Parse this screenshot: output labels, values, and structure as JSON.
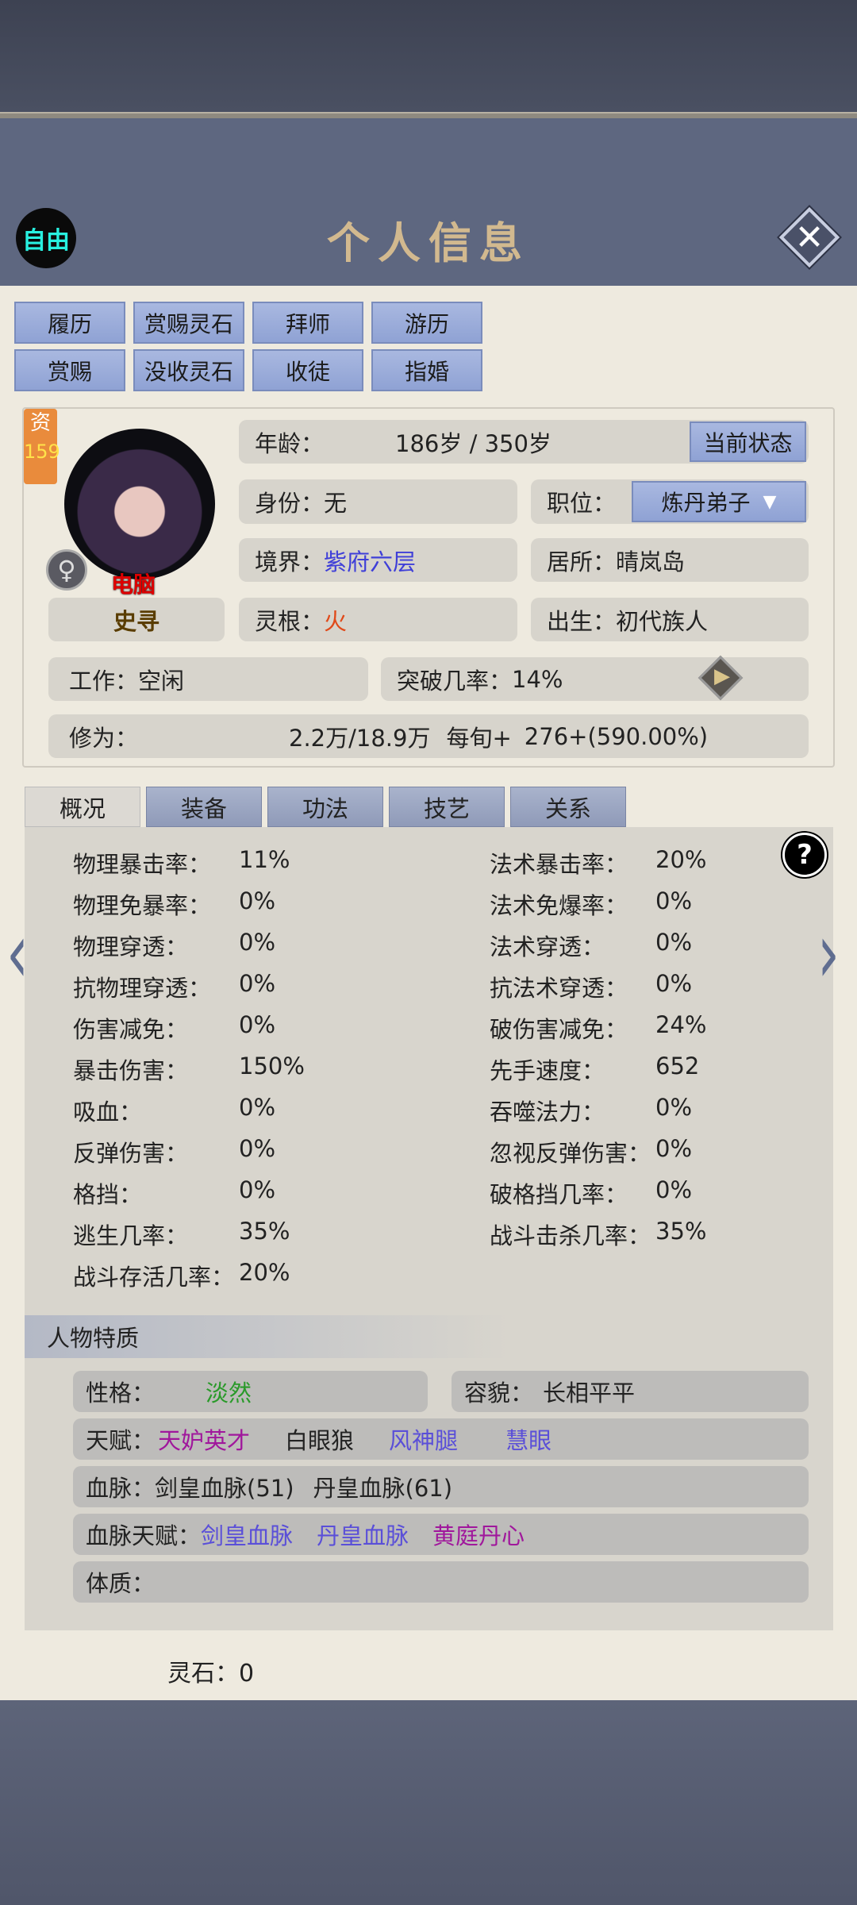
{
  "header": {
    "mode_badge": "自由",
    "title": "个人信息",
    "close_icon": "close-icon"
  },
  "actions": [
    "履历",
    "赏赐灵石",
    "拜师",
    "游历",
    "赏赐",
    "没收灵石",
    "收徒",
    "指婚"
  ],
  "profile": {
    "aptitude_label": "资",
    "aptitude_value": "159",
    "controller": "电脑",
    "gender": "♀",
    "name": "史寻",
    "age_label": "年龄：",
    "age_value": "186岁 / 350岁",
    "status_button": "当前状态",
    "identity_label": "身份：",
    "identity_value": "无",
    "position_label": "职位：",
    "position_value": "炼丹弟子",
    "realm_label": "境界：",
    "realm_value": "紫府六层",
    "residence_label": "居所：",
    "residence_value": "晴岚岛",
    "root_label": "灵根：",
    "root_value": "火",
    "birth_label": "出生：",
    "birth_value": "初代族人",
    "work_label": "工作：",
    "work_value": "空闲",
    "breakthrough_label": "突破几率：",
    "breakthrough_value": "14%",
    "cultivation_label": "修为：",
    "cultivation_value": "2.2万/18.9万",
    "per_turn_label": "每旬+",
    "per_turn_value": "276+(590.00%)"
  },
  "tabs": [
    "概况",
    "装备",
    "功法",
    "技艺",
    "关系"
  ],
  "stats_left": [
    [
      "物理暴击率：",
      "11%"
    ],
    [
      "物理免暴率：",
      "0%"
    ],
    [
      "物理穿透：",
      "0%"
    ],
    [
      "抗物理穿透：",
      "0%"
    ],
    [
      "伤害减免：",
      "0%"
    ],
    [
      "暴击伤害：",
      "150%"
    ],
    [
      "吸血：",
      "0%"
    ],
    [
      "反弹伤害：",
      "0%"
    ],
    [
      "格挡：",
      "0%"
    ],
    [
      "逃生几率：",
      "35%"
    ],
    [
      "战斗存活几率：",
      "20%"
    ]
  ],
  "stats_right": [
    [
      "法术暴击率：",
      "20%"
    ],
    [
      "法术免爆率：",
      "0%"
    ],
    [
      "法术穿透：",
      "0%"
    ],
    [
      "抗法术穿透：",
      "0%"
    ],
    [
      "破伤害减免：",
      "24%"
    ],
    [
      "先手速度：",
      "652"
    ],
    [
      "吞噬法力：",
      "0%"
    ],
    [
      "忽视反弹伤害：",
      "0%"
    ],
    [
      "破格挡几率：",
      "0%"
    ],
    [
      "战斗击杀几率：",
      "35%"
    ]
  ],
  "traits": {
    "title": "人物特质",
    "personality_label": "性格：",
    "personality_value": "淡然",
    "appearance_label": "容貌：",
    "appearance_value": "长相平平",
    "talent_label": "天赋：",
    "talents": [
      "天妒英才",
      "白眼狼",
      "风神腿",
      "慧眼"
    ],
    "bloodline_label": "血脉：",
    "bloodlines": [
      "剑皇血脉(51)",
      "丹皇血脉(61)"
    ],
    "bloodline_talent_label": "血脉天赋：",
    "bloodline_talents": [
      "剑皇血脉",
      "丹皇血脉",
      "黄庭丹心"
    ],
    "physique_label": "体质：",
    "physique_value": ""
  },
  "spirit_stone": "灵石：0",
  "colors": {
    "accent_blue": "#3f3fd8",
    "fire_red": "#e04a1a",
    "green": "#2a9a2a",
    "purple": "#a0179c"
  }
}
